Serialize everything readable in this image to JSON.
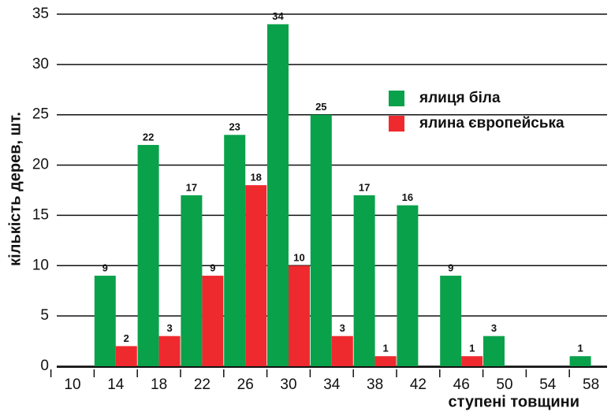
{
  "chart_data": {
    "type": "bar",
    "categories": [
      "10",
      "14",
      "18",
      "22",
      "26",
      "30",
      "34",
      "38",
      "42",
      "46",
      "50",
      "54",
      "58"
    ],
    "series": [
      {
        "name": "ялиця біла",
        "color": "#0aa14b",
        "values": [
          null,
          9,
          22,
          17,
          23,
          34,
          25,
          17,
          16,
          9,
          3,
          null,
          1
        ]
      },
      {
        "name": "ялина європейська",
        "color": "#ee2a2e",
        "values": [
          null,
          2,
          3,
          9,
          18,
          10,
          3,
          1,
          null,
          1,
          null,
          null,
          null
        ]
      }
    ],
    "xlabel": "ступені товщини",
    "ylabel": "кількість дерев, шт.",
    "ylim": [
      0,
      35
    ],
    "yticks": [
      0,
      5,
      10,
      15,
      20,
      25,
      30,
      35
    ],
    "grid": true,
    "legend": "upper right"
  }
}
